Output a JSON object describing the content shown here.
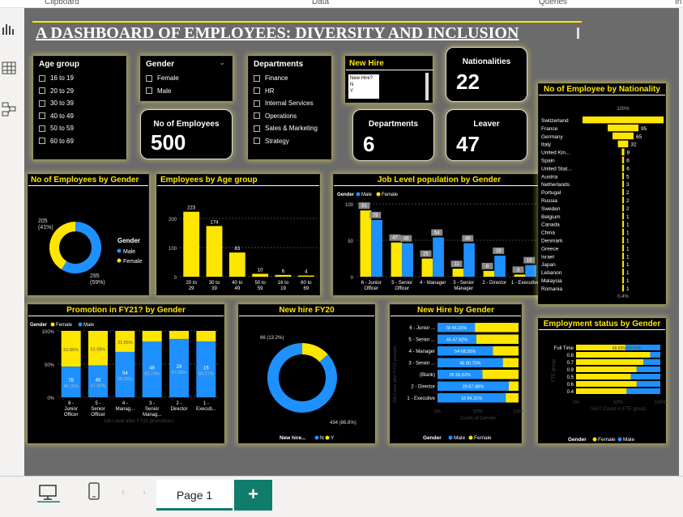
{
  "ribbon": {
    "clipboard": "Clipboard",
    "data": "Data",
    "queries": "Queries",
    "insert": "In"
  },
  "title": "A DASHBOARD OF EMPLOYEES: DIVERSITY AND INCLUSION",
  "colors": {
    "female": "#ffe600",
    "male": "#1e90ff",
    "accent": "#ffe600"
  },
  "slicers": {
    "age": {
      "title": "Age group",
      "items": [
        "16 to 19",
        "20 to 29",
        "30 to 39",
        "40 to 49",
        "50 to 59",
        "60 to 69"
      ]
    },
    "gender": {
      "title": "Gender",
      "items": [
        "Female",
        "Male"
      ]
    },
    "departments": {
      "title": "Departments",
      "items": [
        "Finance",
        "HR",
        "Internal Services",
        "Operations",
        "Sales & Marketing",
        "Strategy"
      ]
    },
    "newhire": {
      "title": "New Hire",
      "placeholder": "New Hire?",
      "items": [
        "N",
        "Y"
      ]
    }
  },
  "cards": {
    "employees": {
      "label": "No of Employees",
      "value": "500"
    },
    "nationalities": {
      "label": "Nationalities",
      "value": "22"
    },
    "departments": {
      "label": "Departments",
      "value": "6"
    },
    "leaver": {
      "label": "Leaver",
      "value": "47"
    }
  },
  "gender_donut": {
    "title": "No of Employees by Gender",
    "legend_title": "Gender",
    "female_label": "205\n(41%)",
    "male_label": "295\n(59%)",
    "male": 295,
    "female": 205,
    "legend": [
      "Male",
      "Female"
    ]
  },
  "age_chart": {
    "title": "Employees by Age group",
    "categories": [
      "20 to 29",
      "30 to 39",
      "40 to 49",
      "50 to 59",
      "16 to 19",
      "60 to 69"
    ],
    "values": [
      223,
      174,
      83,
      10,
      6,
      4
    ],
    "ymax": 250,
    "ticks": [
      0,
      100,
      200
    ]
  },
  "joblevel": {
    "title": "Job Level population by Gender",
    "legend_title": "Gender",
    "legend": [
      "Male",
      "Female"
    ],
    "categories": [
      "6 - Junior Officer",
      "5 - Senior Officer",
      "4 - Manager",
      "3 - Senior Manager",
      "2 - Director",
      "1 - Executive"
    ],
    "female": [
      91,
      47,
      25,
      11,
      8,
      3
    ],
    "male": [
      78,
      46,
      54,
      46,
      29,
      16
    ],
    "ymax": 100,
    "ticks": [
      0,
      50,
      100
    ]
  },
  "nationality": {
    "title": "No of Employee by Nationality",
    "top_label": "100%",
    "bottom_label": "0.4%",
    "items": [
      [
        "Switzerland",
        250
      ],
      [
        "France",
        95
      ],
      [
        "Germany",
        65
      ],
      [
        "Italy",
        32
      ],
      [
        "United Kin...",
        8
      ],
      [
        "Spain",
        6
      ],
      [
        "United Stat...",
        6
      ],
      [
        "Austria",
        5
      ],
      [
        "Netherlands",
        3
      ],
      [
        "Portugal",
        2
      ],
      [
        "Russia",
        2
      ],
      [
        "Sweden",
        2
      ],
      [
        "Belgium",
        1
      ],
      [
        "Canada",
        1
      ],
      [
        "China",
        1
      ],
      [
        "Denmark",
        1
      ],
      [
        "Greece",
        1
      ],
      [
        "Israel",
        1
      ],
      [
        "Japan",
        1
      ],
      [
        "Lebanon",
        1
      ],
      [
        "Malaysia",
        1
      ],
      [
        "Romania",
        1
      ]
    ]
  },
  "promotion": {
    "title": "Promotion in FY21? by Gender",
    "legend_title": "Gender",
    "legend": [
      "Female",
      "Male"
    ],
    "categories": [
      "6 - Junior Officer",
      "5 - Senior Officer",
      "4 - Manag...",
      "3 - Senior Manag...",
      "2 - Director",
      "1 - Executi..."
    ],
    "female_pct": [
      53.85,
      52.08,
      31.65,
      16.27,
      12.12,
      15.79
    ],
    "male_labels": [
      "78\n46.15%",
      "46\n47.92%",
      "54\n68.35%",
      "46\n83.73%",
      "29\n87.88%",
      "16\n84.21%"
    ],
    "female_labels": [
      "53.85%",
      "52.08%",
      "31.65%",
      "",
      "",
      ""
    ],
    "ticks": [
      "0%",
      "50%",
      "100%"
    ],
    "xaxis": "Job Level after FY21 promotions"
  },
  "newhire": {
    "title": "New hire FY20",
    "y_label": "66 (13.2%)",
    "n_label": "434 (86.8%)",
    "n": 434,
    "y": 66,
    "legend_title": "New hire...",
    "legend": [
      "N",
      "Y"
    ]
  },
  "newhire_gender": {
    "title": "New Hire by Gender",
    "categories": [
      "6 - Junior ...",
      "5 - Senior ...",
      "4 - Manager",
      "3 - Senior ...",
      "(Blank)",
      "2 - Director",
      "1 - Executive"
    ],
    "male_pct": [
      46.15,
      47.92,
      68.35,
      80.7,
      55.52,
      87.88,
      84.21
    ],
    "male_labels": [
      "78 46.15%",
      "46 47.92%",
      "54 68.35%",
      "46 80.70%",
      "26 55.52%",
      "29 87.88%",
      "16 84.21%"
    ],
    "ticks": [
      "0%",
      "50%",
      "100%"
    ],
    "xlabel": "Count of Gender",
    "ylabel": "Job Level after FY21 promoti...",
    "legend_title": "Gender",
    "legend": [
      "Male",
      "Female"
    ]
  },
  "employment": {
    "title": "Employment status by Gender",
    "categories": [
      "Full Time",
      "0.8",
      "0.7",
      "0.9",
      "0.5",
      "0.6",
      "0.4"
    ],
    "female_pct": [
      58.6,
      88,
      80,
      72,
      65,
      72,
      60
    ],
    "first_label": "58.60% 63.01%",
    "ticks": [
      "0%",
      "50%",
      "100%"
    ],
    "xlabel": "%GT Count in FTE group",
    "ylabel": "FTE group",
    "legend_title": "Gender",
    "legend": [
      "Female",
      "Male"
    ]
  },
  "bottom": {
    "page_tab": "Page 1",
    "add": "+"
  }
}
